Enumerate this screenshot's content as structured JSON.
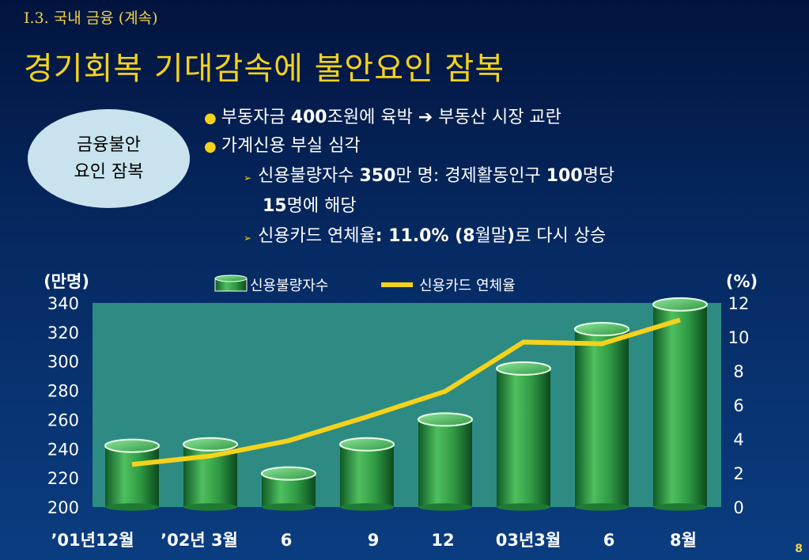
{
  "header": {
    "section": "I.3. 국내 금융 (계속)",
    "title": "경기회복 기대감속에 불안요인 잠복"
  },
  "callout": {
    "text": "금융불안\n요인 잠복"
  },
  "bullets": [
    {
      "pre": "부동자금 ",
      "bold": "400",
      "post": "조원에 육박 ",
      "arrow": "➔",
      "tail": " 부동산 시장 교란"
    },
    {
      "text": "가계신용 부실 심각"
    }
  ],
  "sub_bullets": [
    {
      "pre": "신용불량자수 ",
      "bold1": "350",
      "mid": "만 명: 경제활동인구 ",
      "bold2": "100",
      "post": "명당"
    },
    {
      "bold": "15",
      "post": "명에 해당"
    },
    {
      "pre": "신용카드 연체율",
      "bold": ": 11.0% (8",
      "mid": "월말",
      "bold2": ")",
      "post": "로 다시 상승"
    }
  ],
  "chart_data": {
    "type": "bar",
    "categories": [
      "’01년12월",
      "’02년 3월",
      "6",
      "9",
      "12",
      "03년3월",
      "6",
      "8월"
    ],
    "left_axis": {
      "label": "(만명)",
      "min": 200,
      "max": 340,
      "ticks": [
        200,
        220,
        240,
        260,
        280,
        300,
        320,
        340
      ]
    },
    "right_axis": {
      "label": "(%)",
      "min": 0,
      "max": 12,
      "ticks": [
        0,
        2,
        4,
        6,
        8,
        10,
        12
      ]
    },
    "series": [
      {
        "name": "신용불량자수",
        "type": "bar",
        "axis": "left",
        "values": [
          242,
          243,
          223,
          243,
          260,
          295,
          322,
          339
        ]
      },
      {
        "name": "신용카드 연체율",
        "type": "line",
        "axis": "right",
        "values": [
          2.5,
          3.0,
          3.9,
          5.3,
          6.8,
          9.7,
          9.6,
          11.0
        ]
      }
    ],
    "colors": {
      "plot_bg": "#2e8b83",
      "bar": "#2f9a43",
      "line": "#f5d21c"
    },
    "legend": "top"
  },
  "page": {
    "number": "8"
  }
}
